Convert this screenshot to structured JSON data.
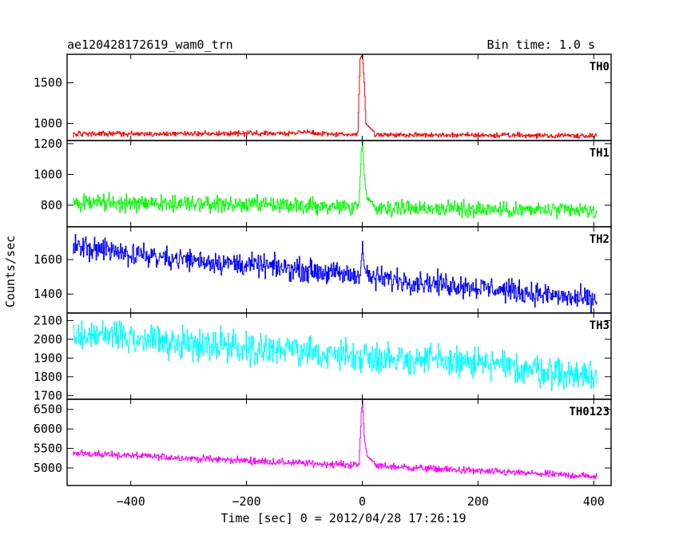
{
  "chart_data": {
    "type": "line",
    "title": "ae120428172619_wam0_trn",
    "subtitle": "Bin time: 1.0 s",
    "xlabel": "Time [sec] 0 = 2012/04/28 17:26:19",
    "ylabel": "Counts/sec",
    "xlim": [
      -510,
      430
    ],
    "xticks": [
      -400,
      -200,
      0,
      200,
      400
    ],
    "x_tick_labels": [
      "−400",
      "−200",
      "0",
      "200",
      "400"
    ],
    "x_range_data": [
      -500,
      405
    ],
    "grid": false,
    "legend": "none",
    "panels": [
      {
        "name": "TH0",
        "color": "#ff0000",
        "ylim": [
          790,
          1850
        ],
        "yticks": [
          1000,
          1500
        ],
        "ytick_labels": [
          "1000",
          "1500"
        ],
        "baseline": [
          [
            -500,
            870
          ],
          [
            -120,
            880
          ],
          [
            -100,
            900
          ],
          [
            -80,
            880
          ],
          [
            0,
            860
          ],
          [
            405,
            850
          ]
        ],
        "noise": 25,
        "burst": [
          [
            -8,
            900
          ],
          [
            -4,
            1800
          ],
          [
            0,
            1850
          ],
          [
            3,
            1500
          ],
          [
            6,
            1000
          ],
          [
            12,
            950
          ],
          [
            20,
            900
          ]
        ]
      },
      {
        "name": "TH1",
        "color": "#00ff00",
        "ylim": [
          660,
          1220
        ],
        "yticks": [
          800,
          1000,
          1200
        ],
        "ytick_labels": [
          "800",
          "1000",
          "1200"
        ],
        "baseline": [
          [
            -500,
            820
          ],
          [
            -200,
            800
          ],
          [
            0,
            790
          ],
          [
            405,
            760
          ]
        ],
        "noise": 45,
        "burst": [
          [
            -6,
            820
          ],
          [
            -2,
            1150
          ],
          [
            0,
            1210
          ],
          [
            3,
            1000
          ],
          [
            8,
            850
          ],
          [
            20,
            800
          ]
        ]
      },
      {
        "name": "TH2",
        "color": "#0000ff",
        "ylim": [
          1290,
          1790
        ],
        "yticks": [
          1400,
          1600
        ],
        "ytick_labels": [
          "1400",
          "1600"
        ],
        "baseline": [
          [
            -500,
            1670
          ],
          [
            -300,
            1600
          ],
          [
            -100,
            1540
          ],
          [
            0,
            1500
          ],
          [
            200,
            1440
          ],
          [
            405,
            1360
          ]
        ],
        "noise": 55,
        "burst": [
          [
            -4,
            1520
          ],
          [
            0,
            1690
          ],
          [
            3,
            1550
          ],
          [
            10,
            1500
          ]
        ]
      },
      {
        "name": "TH3",
        "color": "#00ffff",
        "ylim": [
          1680,
          2140
        ],
        "yticks": [
          1700,
          1800,
          1900,
          2000,
          2100
        ],
        "ytick_labels": [
          "1700",
          "1800",
          "1900",
          "2000",
          "2100"
        ],
        "baseline": [
          [
            -500,
            2030
          ],
          [
            -300,
            1980
          ],
          [
            -100,
            1930
          ],
          [
            0,
            1910
          ],
          [
            200,
            1870
          ],
          [
            405,
            1800
          ]
        ],
        "noise": 70,
        "burst": []
      },
      {
        "name": "TH0123",
        "color": "#ff00ff",
        "ylim": [
          4550,
          6760
        ],
        "yticks": [
          5000,
          5500,
          6000,
          6500
        ],
        "ytick_labels": [
          "5000",
          "5500",
          "6000",
          "6500"
        ],
        "baseline": [
          [
            -500,
            5380
          ],
          [
            -300,
            5250
          ],
          [
            -100,
            5120
          ],
          [
            0,
            5070
          ],
          [
            200,
            4920
          ],
          [
            405,
            4780
          ]
        ],
        "noise": 75,
        "burst": [
          [
            -6,
            5100
          ],
          [
            -2,
            6400
          ],
          [
            0,
            6760
          ],
          [
            3,
            5800
          ],
          [
            8,
            5300
          ],
          [
            20,
            5150
          ]
        ]
      }
    ]
  }
}
